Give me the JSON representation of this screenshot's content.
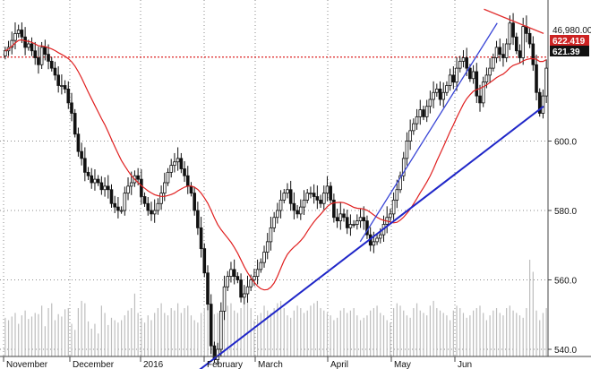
{
  "chart_data": {
    "type": "candlestick",
    "title": "",
    "xlabel": "",
    "ylabel": "",
    "x_tick_labels": [
      "November",
      "December",
      "2016",
      "February",
      "March",
      "April",
      "May",
      "Jun"
    ],
    "y_ticks": [
      540,
      560,
      580,
      600
    ],
    "y_tick_labels": [
      "540.0",
      "560.0",
      "580.0",
      "600.0"
    ],
    "ylim": [
      530,
      638
    ],
    "grid": true,
    "price_flags": [
      {
        "label": "46,980.00",
        "value": 637.5,
        "bg": "#ffffff",
        "fg": "#111111"
      },
      {
        "label": "622.419",
        "value": 624.2,
        "bg": "#cc2222",
        "fg": "#ffffff"
      },
      {
        "label": "621.39",
        "value": 621.4,
        "bg": "#111111",
        "fg": "#ffffff"
      }
    ],
    "reference_level": 624.2,
    "closes": [
      626,
      627,
      629,
      631,
      632,
      630,
      627,
      628,
      626,
      624,
      622,
      627,
      625,
      623,
      621,
      619,
      616,
      616,
      615,
      611,
      608,
      602,
      597,
      595,
      591,
      590,
      588,
      589,
      588,
      586,
      587,
      586,
      582,
      581,
      580,
      580,
      585,
      587,
      588,
      590,
      589,
      584,
      582,
      580,
      579,
      580,
      582,
      585,
      588,
      591,
      593,
      594,
      595,
      592,
      590,
      587,
      585,
      580,
      575,
      569,
      562,
      553,
      541,
      537,
      540,
      551,
      558,
      561,
      563,
      561,
      560,
      555,
      556,
      558,
      560,
      561,
      563,
      565,
      568,
      571,
      575,
      578,
      580,
      583,
      585,
      586,
      582,
      580,
      579,
      581,
      583,
      585,
      585,
      584,
      583,
      582,
      585,
      587,
      583,
      578,
      577,
      579,
      578,
      575,
      576,
      576,
      577,
      578,
      577,
      573,
      570,
      571,
      572,
      573,
      576,
      578,
      579,
      583,
      586,
      590,
      595,
      600,
      603,
      605,
      607,
      609,
      607,
      610,
      612,
      614,
      615,
      612,
      614,
      616,
      619,
      617,
      621,
      623,
      624,
      621,
      618,
      620,
      613,
      611,
      617,
      619,
      621,
      624,
      627,
      625,
      624,
      628,
      634,
      630,
      626,
      624,
      633,
      631,
      628,
      622,
      614,
      608,
      613,
      621
    ],
    "volume": [
      32,
      30,
      33,
      36,
      27,
      34,
      38,
      31,
      33,
      36,
      35,
      42,
      25,
      40,
      44,
      30,
      35,
      33,
      39,
      40,
      27,
      22,
      40,
      46,
      44,
      29,
      23,
      27,
      19,
      42,
      36,
      26,
      32,
      30,
      28,
      30,
      34,
      38,
      40,
      52,
      36,
      32,
      28,
      34,
      30,
      36,
      40,
      44,
      36,
      34,
      40,
      38,
      44,
      36,
      40,
      42,
      34,
      30,
      28,
      36,
      40,
      38,
      44,
      35,
      36,
      30,
      40,
      42,
      44,
      38,
      36,
      40,
      44,
      48,
      40,
      30,
      34,
      36,
      42,
      38,
      36,
      40,
      44,
      46,
      40,
      34,
      32,
      38,
      42,
      40,
      36,
      38,
      42,
      44,
      46,
      40,
      38,
      36,
      34,
      30,
      32,
      38,
      40,
      36,
      38,
      40,
      34,
      30,
      32,
      34,
      38,
      40,
      42,
      36,
      34,
      30,
      28,
      40,
      44,
      42,
      38,
      34,
      32,
      40,
      44,
      38,
      36,
      34,
      42,
      46,
      40,
      38,
      36,
      34,
      30,
      38,
      42,
      40,
      36,
      32,
      34,
      38,
      40,
      42,
      36,
      30,
      34,
      38,
      40,
      36,
      34,
      40,
      42,
      38,
      36,
      34,
      32,
      40,
      80,
      70,
      38,
      30,
      36,
      40
    ],
    "moving_average": {
      "period": 20,
      "name": ""
    },
    "trendlines": [
      {
        "from": [
          "2016-01-20",
          532
        ],
        "to": [
          "2016-06-28",
          610
        ],
        "color": "#1f26c8"
      },
      {
        "from": [
          "2016-04-06",
          571
        ],
        "to": [
          "2016-06-07",
          634
        ],
        "color": "#3a46d6"
      },
      {
        "from": [
          "2016-06-01",
          638
        ],
        "to": [
          "2016-06-28",
          631
        ],
        "color": "#e23030"
      }
    ]
  }
}
